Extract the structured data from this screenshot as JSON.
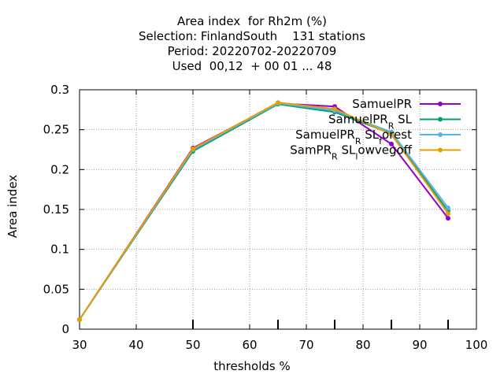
{
  "chart_data": {
    "type": "line",
    "title_lines": [
      "Area index  for Rh2m (%)",
      "Selection: FinlandSouth    131 stations",
      "Period: 20220702-20220709",
      "Used  00,12  + 00 01 ... 48"
    ],
    "xlabel": "thresholds %",
    "ylabel": "Area index",
    "xlim": [
      30,
      100
    ],
    "ylim": [
      0,
      0.3
    ],
    "xticks": [
      30,
      40,
      50,
      60,
      70,
      80,
      90,
      100
    ],
    "yticks": [
      0,
      0.05,
      0.1,
      0.15,
      0.2,
      0.25,
      0.3
    ],
    "xtick_labels": [
      "30",
      "40",
      "50",
      "60",
      "70",
      "80",
      "90",
      "100"
    ],
    "ytick_labels": [
      "0",
      "0.05",
      "0.1",
      "0.15",
      "0.2",
      "0.25",
      "0.3"
    ],
    "grid": true,
    "legend_position": "top-right",
    "x": [
      30,
      50,
      65,
      75,
      85,
      95
    ],
    "series": [
      {
        "name": "SamuelPR",
        "legend_parts": [
          [
            "SamuelPR",
            ""
          ]
        ],
        "color": "#9400d3",
        "values": [
          0.012,
          0.227,
          0.283,
          0.279,
          0.232,
          0.139
        ]
      },
      {
        "name": "SamuelPR_R SL",
        "legend_parts": [
          [
            "SamuelPR",
            ""
          ],
          [
            "R",
            "sub"
          ],
          [
            " SL",
            ""
          ]
        ],
        "color": "#009e73",
        "values": [
          0.012,
          0.223,
          0.282,
          0.272,
          0.245,
          0.148
        ]
      },
      {
        "name": "SamuelPR_R SL_forest",
        "legend_parts": [
          [
            "SamuelPR",
            ""
          ],
          [
            "R",
            "sub"
          ],
          [
            " SL",
            ""
          ],
          [
            "f",
            "sub"
          ],
          [
            "orest",
            ""
          ]
        ],
        "color": "#56b4e9",
        "values": [
          0.012,
          0.225,
          0.283,
          0.274,
          0.247,
          0.152
        ]
      },
      {
        "name": "SamPR_R SL_lowvegoff",
        "legend_parts": [
          [
            "SamPR",
            ""
          ],
          [
            "R",
            "sub"
          ],
          [
            " SL",
            ""
          ],
          [
            "l",
            "sub"
          ],
          [
            "owvegoff",
            ""
          ]
        ],
        "color": "#e69f00",
        "values": [
          0.012,
          0.226,
          0.284,
          0.276,
          0.244,
          0.145
        ]
      }
    ]
  }
}
